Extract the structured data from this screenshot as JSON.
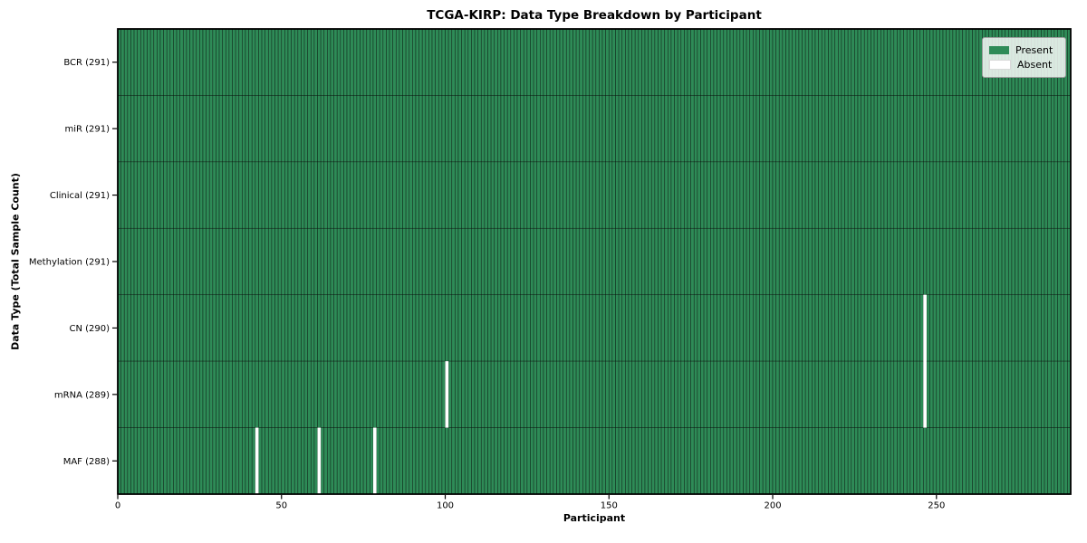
{
  "chart_data": {
    "type": "heatmap",
    "title": "TCGA-KIRP: Data Type Breakdown by Participant",
    "xlabel": "Participant",
    "ylabel": "Data Type (Total Sample Count)",
    "n_participants": 291,
    "x_range": [
      0,
      291
    ],
    "x_ticks": [
      0,
      50,
      100,
      150,
      200,
      250
    ],
    "grid": "per-cell-edges",
    "legend_position": "upper right",
    "rows": [
      {
        "label": "BCR (291)",
        "data_type": "BCR",
        "present_count": 291,
        "missing_participants": []
      },
      {
        "label": "miR (291)",
        "data_type": "miR",
        "present_count": 291,
        "missing_participants": []
      },
      {
        "label": "Clinical (291)",
        "data_type": "Clinical",
        "present_count": 291,
        "missing_participants": []
      },
      {
        "label": "Methylation (291)",
        "data_type": "Methylation",
        "present_count": 291,
        "missing_participants": []
      },
      {
        "label": "CN (290)",
        "data_type": "CN",
        "present_count": 290,
        "missing_participants": [
          246
        ]
      },
      {
        "label": "mRNA (289)",
        "data_type": "mRNA",
        "present_count": 289,
        "missing_participants": [
          100,
          246
        ]
      },
      {
        "label": "MAF (288)",
        "data_type": "MAF",
        "present_count": 288,
        "missing_participants": [
          42,
          61,
          78
        ]
      }
    ],
    "legend": [
      {
        "label": "Present",
        "color": "#2e8b57"
      },
      {
        "label": "Absent",
        "color": "#ffffff"
      }
    ],
    "colors": {
      "present": "#2e8b57",
      "absent": "#ffffff",
      "cell_edge": "rgba(0,0,0,0.55)",
      "spine": "#000000",
      "tick": "#000000",
      "background": "#ffffff"
    }
  }
}
